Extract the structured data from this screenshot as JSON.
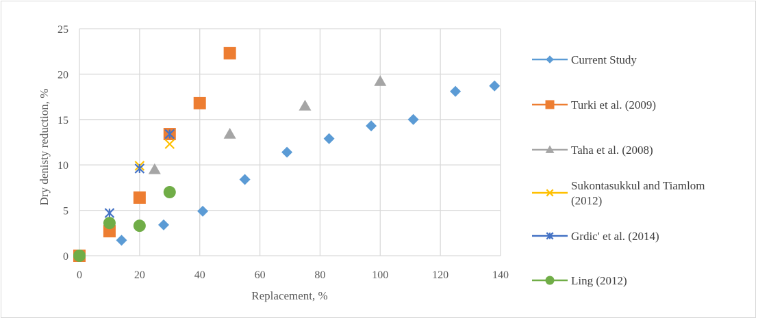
{
  "chart_data": {
    "type": "scatter",
    "title": "",
    "xlabel": "Replacement,  %",
    "ylabel": "Dry denisty reduction, %",
    "xlim": [
      0,
      140
    ],
    "ylim": [
      0,
      25
    ],
    "xticks": [
      "0",
      "20",
      "40",
      "60",
      "80",
      "100",
      "120",
      "140"
    ],
    "yticks": [
      "0",
      "5",
      "10",
      "15",
      "20",
      "25"
    ],
    "grid": true,
    "legend_position": "right",
    "series": [
      {
        "name": "Current Study",
        "marker": "diamond",
        "color": "#5b9bd5",
        "x": [
          0,
          14,
          28,
          41,
          55,
          69,
          83,
          97,
          111,
          125,
          138
        ],
        "y": [
          0,
          1.7,
          3.4,
          4.9,
          8.4,
          11.4,
          12.9,
          14.3,
          15.0,
          18.1,
          18.7
        ]
      },
      {
        "name": "Turki et al. (2009)",
        "marker": "square",
        "color": "#ed7d31",
        "x": [
          0,
          10,
          20,
          30,
          40,
          50
        ],
        "y": [
          0,
          2.7,
          6.4,
          13.4,
          16.8,
          22.3
        ]
      },
      {
        "name": "Taha et al. (2008)",
        "marker": "triangle",
        "color": "#a5a5a5",
        "x": [
          25,
          50,
          75,
          100
        ],
        "y": [
          9.5,
          13.4,
          16.5,
          19.2
        ]
      },
      {
        "name": "Sukontasukkul and Tiamlom (2012)",
        "legend_lines": [
          "Sukontasukkul and Tiamlom",
          "(2012)"
        ],
        "marker": "x",
        "color": "#ffc000",
        "x": [
          20,
          30
        ],
        "y": [
          9.9,
          12.3
        ]
      },
      {
        "name": "Grdic' et al. (2014)",
        "marker": "star",
        "color": "#4472c4",
        "x": [
          10,
          20,
          30
        ],
        "y": [
          4.7,
          9.6,
          13.4
        ]
      },
      {
        "name": "Ling (2012)",
        "marker": "circle",
        "color": "#70ad47",
        "x": [
          0,
          10,
          20,
          30
        ],
        "y": [
          0,
          3.6,
          3.3,
          7.0
        ]
      }
    ]
  }
}
